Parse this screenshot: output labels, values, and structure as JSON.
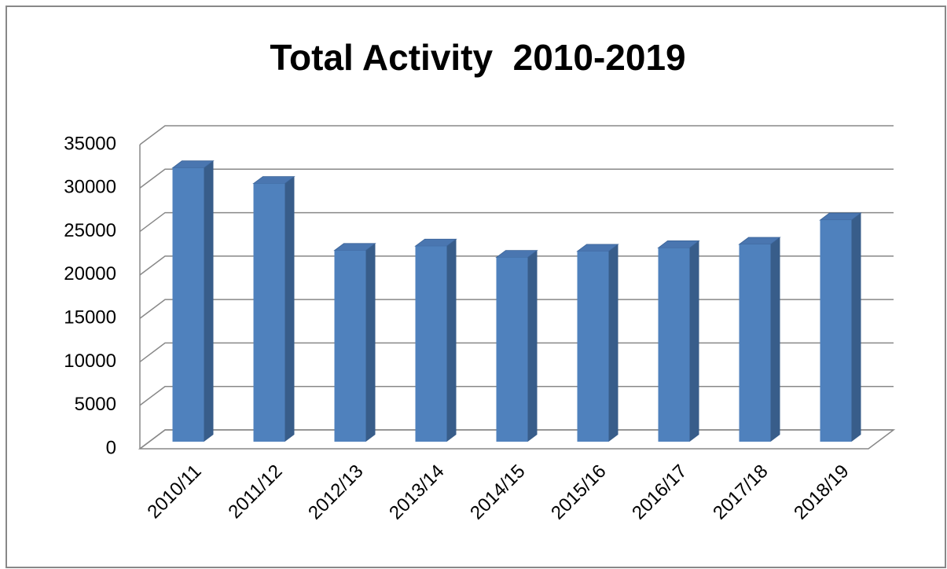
{
  "chart_data": {
    "type": "bar",
    "title": "Total Activity  2010-2019",
    "categories": [
      "2010/11",
      "2011/12",
      "2012/13",
      "2013/14",
      "2014/15",
      "2015/16",
      "2016/17",
      "2017/18",
      "2018/19"
    ],
    "values": [
      31500,
      29700,
      22000,
      22500,
      21200,
      21900,
      22300,
      22700,
      25500
    ],
    "color": "#4f81bd",
    "ylim": [
      0,
      35000
    ],
    "yticks": [
      0,
      5000,
      10000,
      15000,
      20000,
      25000,
      30000,
      35000
    ],
    "grid": true
  }
}
